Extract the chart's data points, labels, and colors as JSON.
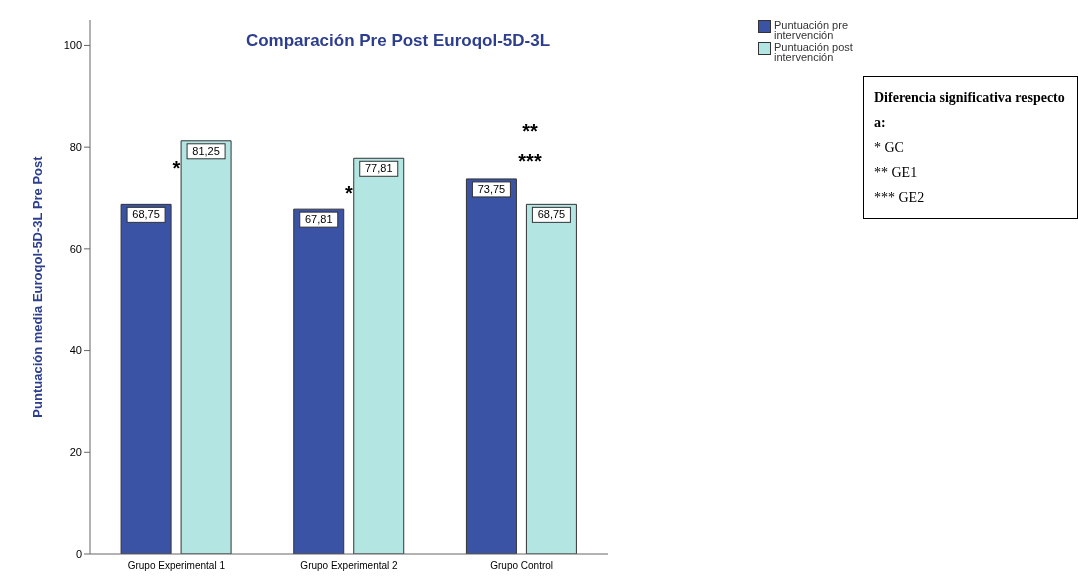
{
  "chart_data": {
    "type": "bar",
    "title": "Comparación Pre Post Euroqol-5D-3L",
    "ylabel": "Puntuación media Euroqol-5D-3L Pre Post",
    "categories": [
      "Grupo Experimental 1",
      "Grupo Experimental 2",
      "Grupo Control"
    ],
    "series": [
      {
        "name": "Puntuación pre intervención",
        "color": "#3a53a4",
        "values": [
          68.75,
          67.81,
          73.75
        ]
      },
      {
        "name": "Puntuación post intervención",
        "color": "#b3e5e3",
        "values": [
          81.25,
          77.81,
          68.75
        ]
      }
    ],
    "value_labels": [
      [
        "68,75",
        "67,81",
        "73,75"
      ],
      [
        "81,25",
        "77,81",
        "68,75"
      ]
    ],
    "ylim": [
      0,
      105
    ],
    "yticks": [
      0,
      20,
      40,
      60,
      80,
      100
    ],
    "grid": false,
    "legend": "top right",
    "annotations": [
      {
        "text": "*",
        "x": "Grupo Experimental 1",
        "y": 76
      },
      {
        "text": "*",
        "x": "Grupo Experimental 2",
        "y": 71
      },
      "**",
      "***",
      "Diferencia significativa respecto a:",
      "* GC",
      "** GE1",
      "*** GE2"
    ]
  }
}
